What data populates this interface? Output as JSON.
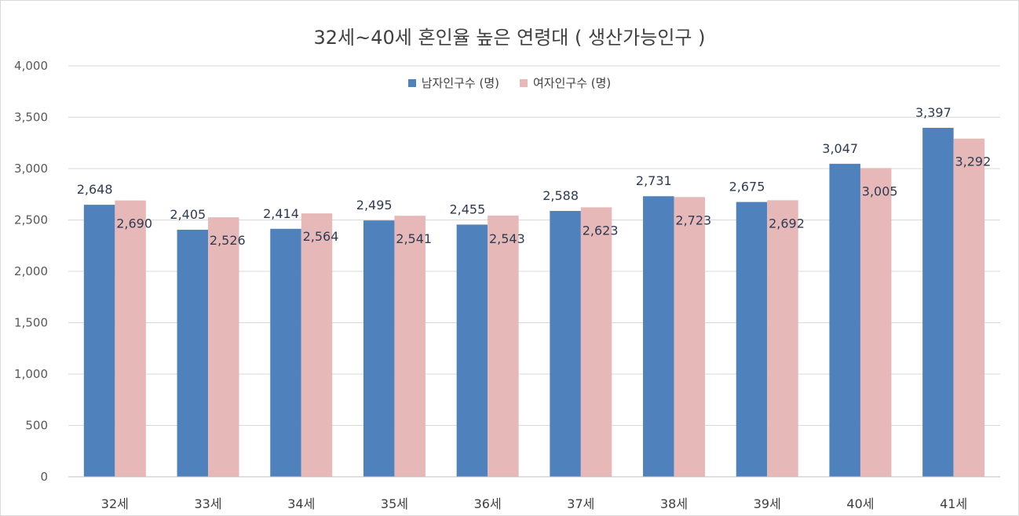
{
  "chart_data": {
    "type": "bar",
    "title": "32세~40세 혼인율 높은 연령대 ( 생산가능인구 )",
    "categories": [
      "32세",
      "33세",
      "34세",
      "35세",
      "36세",
      "37세",
      "38세",
      "39세",
      "40세",
      "41세"
    ],
    "series": [
      {
        "name": "남자인구수 (명)",
        "color": "#4f81bd",
        "values": [
          2648,
          2405,
          2414,
          2495,
          2455,
          2588,
          2731,
          2675,
          3047,
          3397
        ]
      },
      {
        "name": "여자인구수 (명)",
        "color": "#e6b9b8",
        "values": [
          2690,
          2526,
          2564,
          2541,
          2543,
          2623,
          2723,
          2692,
          3005,
          3292
        ]
      }
    ],
    "ylim": [
      0,
      4000
    ],
    "yticks": [
      0,
      500,
      1000,
      1500,
      2000,
      2500,
      3000,
      3500,
      4000
    ],
    "ytick_labels": [
      "0",
      "500",
      "1,000",
      "1,500",
      "2,000",
      "2,500",
      "3,000",
      "3,500",
      "4,000"
    ],
    "grid": true,
    "legend_position": "top-center"
  }
}
